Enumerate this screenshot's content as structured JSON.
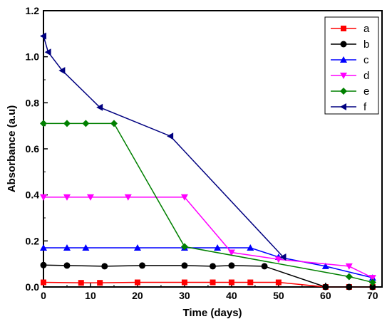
{
  "chart_data": {
    "type": "line",
    "xlabel": "Time (days)",
    "ylabel": "Absorbance (a.u)",
    "xlim": [
      0,
      72
    ],
    "ylim": [
      0,
      1.2
    ],
    "xticks": [
      "0",
      "10",
      "20",
      "30",
      "40",
      "50",
      "60",
      "70"
    ],
    "yticks": [
      "0.0",
      "0.2",
      "0.4",
      "0.6",
      "0.8",
      "1.0",
      "1.2"
    ],
    "legend_position": "top-right",
    "series": [
      {
        "name": "a",
        "color": "#ff0000",
        "marker": "square",
        "points": [
          [
            0,
            0.02
          ],
          [
            8,
            0.018
          ],
          [
            12,
            0.018
          ],
          [
            20,
            0.02
          ],
          [
            30,
            0.02
          ],
          [
            36,
            0.02
          ],
          [
            40,
            0.02
          ],
          [
            44,
            0.02
          ],
          [
            50,
            0.02
          ],
          [
            60,
            0.0
          ],
          [
            65,
            0.0
          ],
          [
            70,
            0.0
          ]
        ]
      },
      {
        "name": "b",
        "color": "#000000",
        "marker": "circle",
        "points": [
          [
            0,
            0.095
          ],
          [
            5,
            0.093
          ],
          [
            13,
            0.09
          ],
          [
            21,
            0.093
          ],
          [
            30,
            0.093
          ],
          [
            36,
            0.09
          ],
          [
            40,
            0.093
          ],
          [
            47,
            0.09
          ],
          [
            60,
            0.0
          ],
          [
            65,
            0.0
          ],
          [
            70,
            0.0
          ]
        ]
      },
      {
        "name": "c",
        "color": "#0000ff",
        "marker": "triangle-up",
        "points": [
          [
            0,
            0.17
          ],
          [
            5,
            0.17
          ],
          [
            9,
            0.17
          ],
          [
            20,
            0.17
          ],
          [
            30,
            0.17
          ],
          [
            37,
            0.17
          ],
          [
            44,
            0.17
          ],
          [
            50,
            0.13
          ],
          [
            60,
            0.09
          ],
          [
            70,
            0.04
          ]
        ]
      },
      {
        "name": "d",
        "color": "#ff00ff",
        "marker": "triangle-down",
        "points": [
          [
            0,
            0.39
          ],
          [
            5,
            0.39
          ],
          [
            10,
            0.39
          ],
          [
            18,
            0.39
          ],
          [
            30,
            0.39
          ],
          [
            40,
            0.15
          ],
          [
            50,
            0.12
          ],
          [
            65,
            0.09
          ],
          [
            70,
            0.04
          ]
        ]
      },
      {
        "name": "e",
        "color": "#008000",
        "marker": "diamond",
        "points": [
          [
            0,
            0.71
          ],
          [
            5,
            0.71
          ],
          [
            9,
            0.71
          ],
          [
            15,
            0.71
          ],
          [
            30,
            0.175
          ],
          [
            65,
            0.045
          ],
          [
            70,
            0.02
          ]
        ]
      },
      {
        "name": "f",
        "color": "#000080",
        "marker": "triangle-left",
        "points": [
          [
            0,
            1.09
          ],
          [
            1,
            1.02
          ],
          [
            4,
            0.94
          ],
          [
            12,
            0.78
          ],
          [
            27,
            0.655
          ],
          [
            51,
            0.13
          ]
        ]
      }
    ]
  }
}
